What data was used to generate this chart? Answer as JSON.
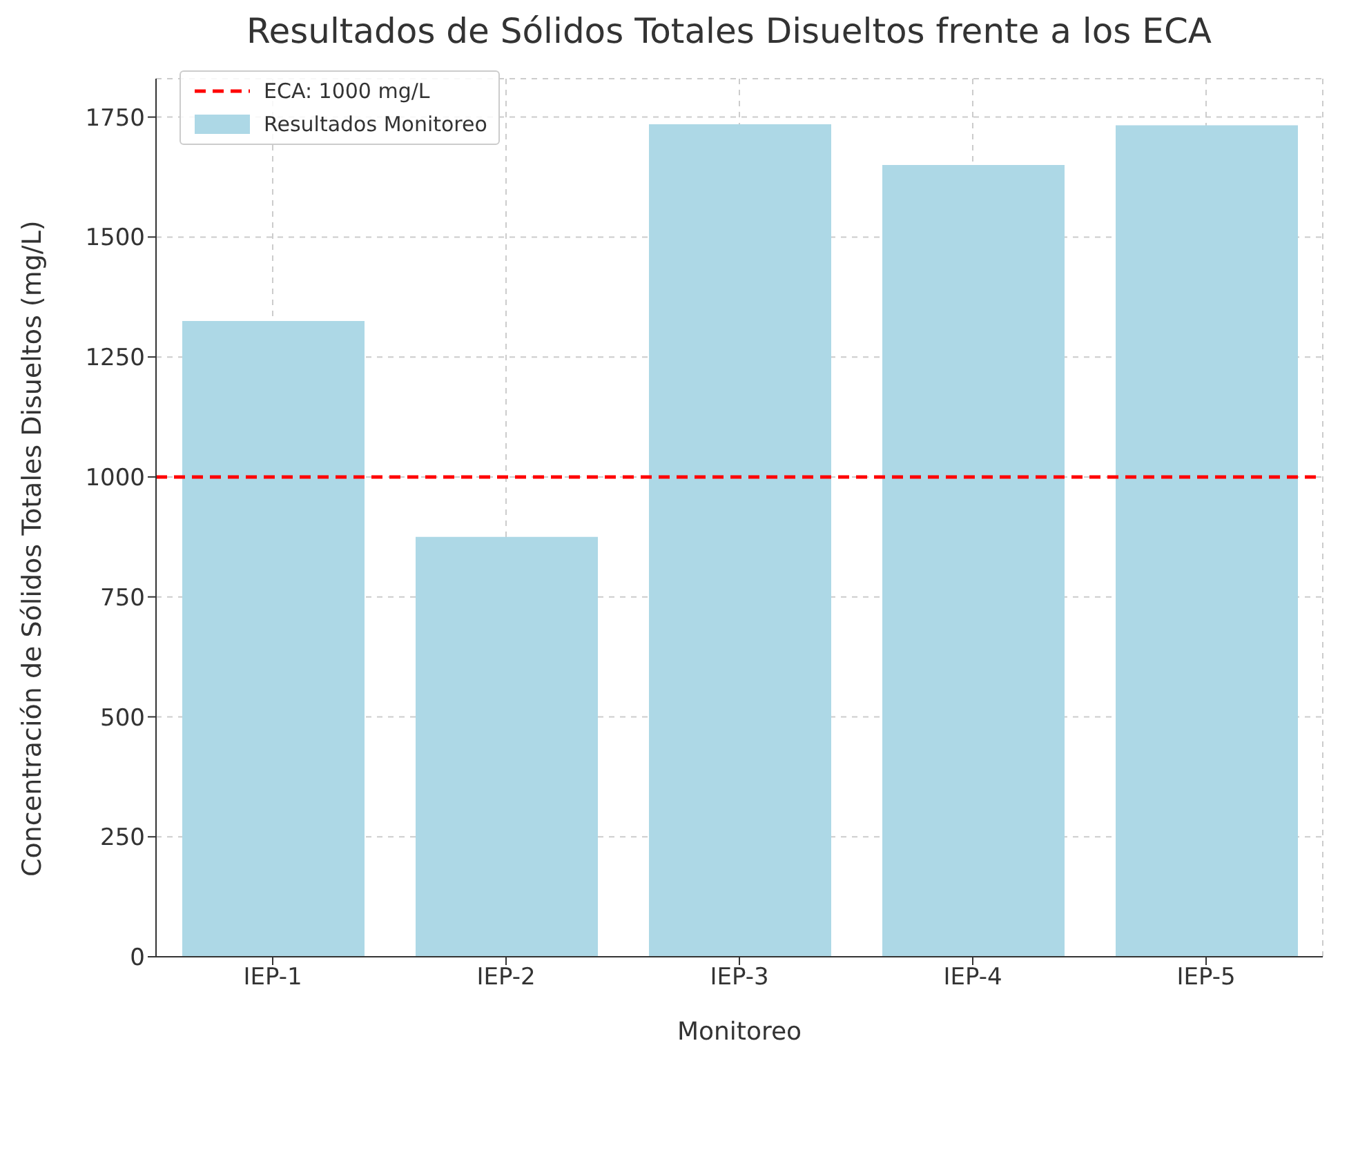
{
  "chart_data": {
    "type": "bar",
    "title": "Resultados de Sólidos Totales Disueltos frente a los ECA",
    "xlabel": "Monitoreo",
    "ylabel": "Concentración de Sólidos Totales Disueltos (mg/L)",
    "categories": [
      "IEP-1",
      "IEP-2",
      "IEP-3",
      "IEP-4",
      "IEP-5"
    ],
    "series": [
      {
        "name": "Resultados Monitoreo",
        "color": "#add8e6",
        "values": [
          1325,
          875,
          1735,
          1650,
          1733
        ]
      }
    ],
    "ref_lines": [
      {
        "axis": "y",
        "value": 1000,
        "label": "ECA: 1000 mg/L",
        "color": "#ff0000",
        "line_style": "dashed"
      }
    ],
    "ylim": [
      0,
      1830
    ],
    "yticks": [
      0,
      250,
      500,
      750,
      1000,
      1250,
      1500,
      1750
    ],
    "grid": true,
    "legend": "top left"
  }
}
